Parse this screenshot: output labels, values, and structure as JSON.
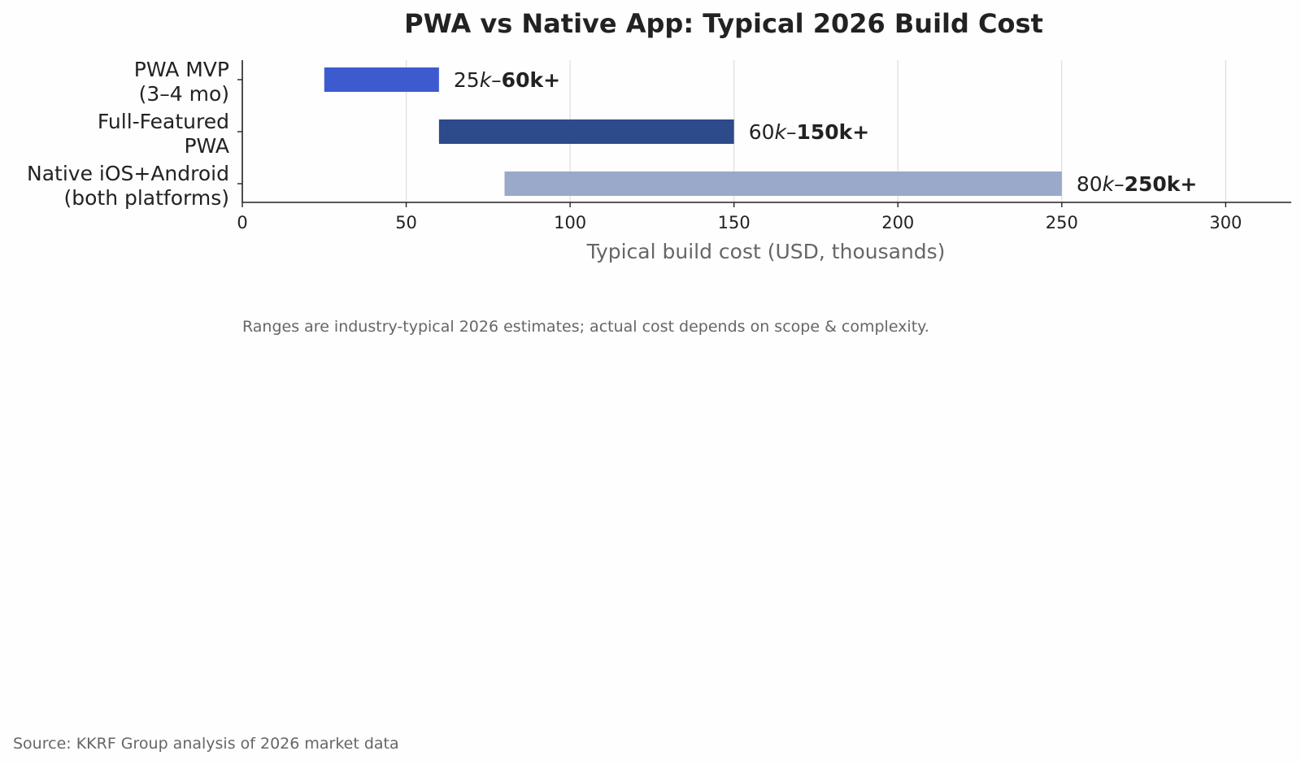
{
  "chart_data": {
    "type": "bar",
    "orientation": "horizontal",
    "title": "PWA vs Native App: Typical 2026 Build Cost",
    "xlabel": "Typical build cost (USD, thousands)",
    "ylabel": "",
    "xlim": [
      0,
      320
    ],
    "xticks": [
      0,
      50,
      100,
      150,
      200,
      250,
      300
    ],
    "grid": "vertical",
    "categories": [
      [
        "PWA MVP",
        "(3–4 mo)"
      ],
      [
        "Full-Featured",
        "PWA"
      ],
      [
        "Native iOS+Android",
        "(both platforms)"
      ]
    ],
    "ranges": [
      {
        "start": 25,
        "end": 60,
        "color": "#3d5bcf",
        "label_low": "25",
        "label_high": "60k+"
      },
      {
        "start": 60,
        "end": 150,
        "color": "#2d4a8a",
        "label_low": "60",
        "label_high": "150k+"
      },
      {
        "start": 80,
        "end": 250,
        "color": "#9aa8c9",
        "label_low": "80",
        "label_high": "250k+"
      }
    ],
    "note": "Ranges are industry-typical 2026 estimates; actual cost depends on scope & complexity.",
    "source": "Source: KKRF Group analysis of 2026 market data"
  }
}
